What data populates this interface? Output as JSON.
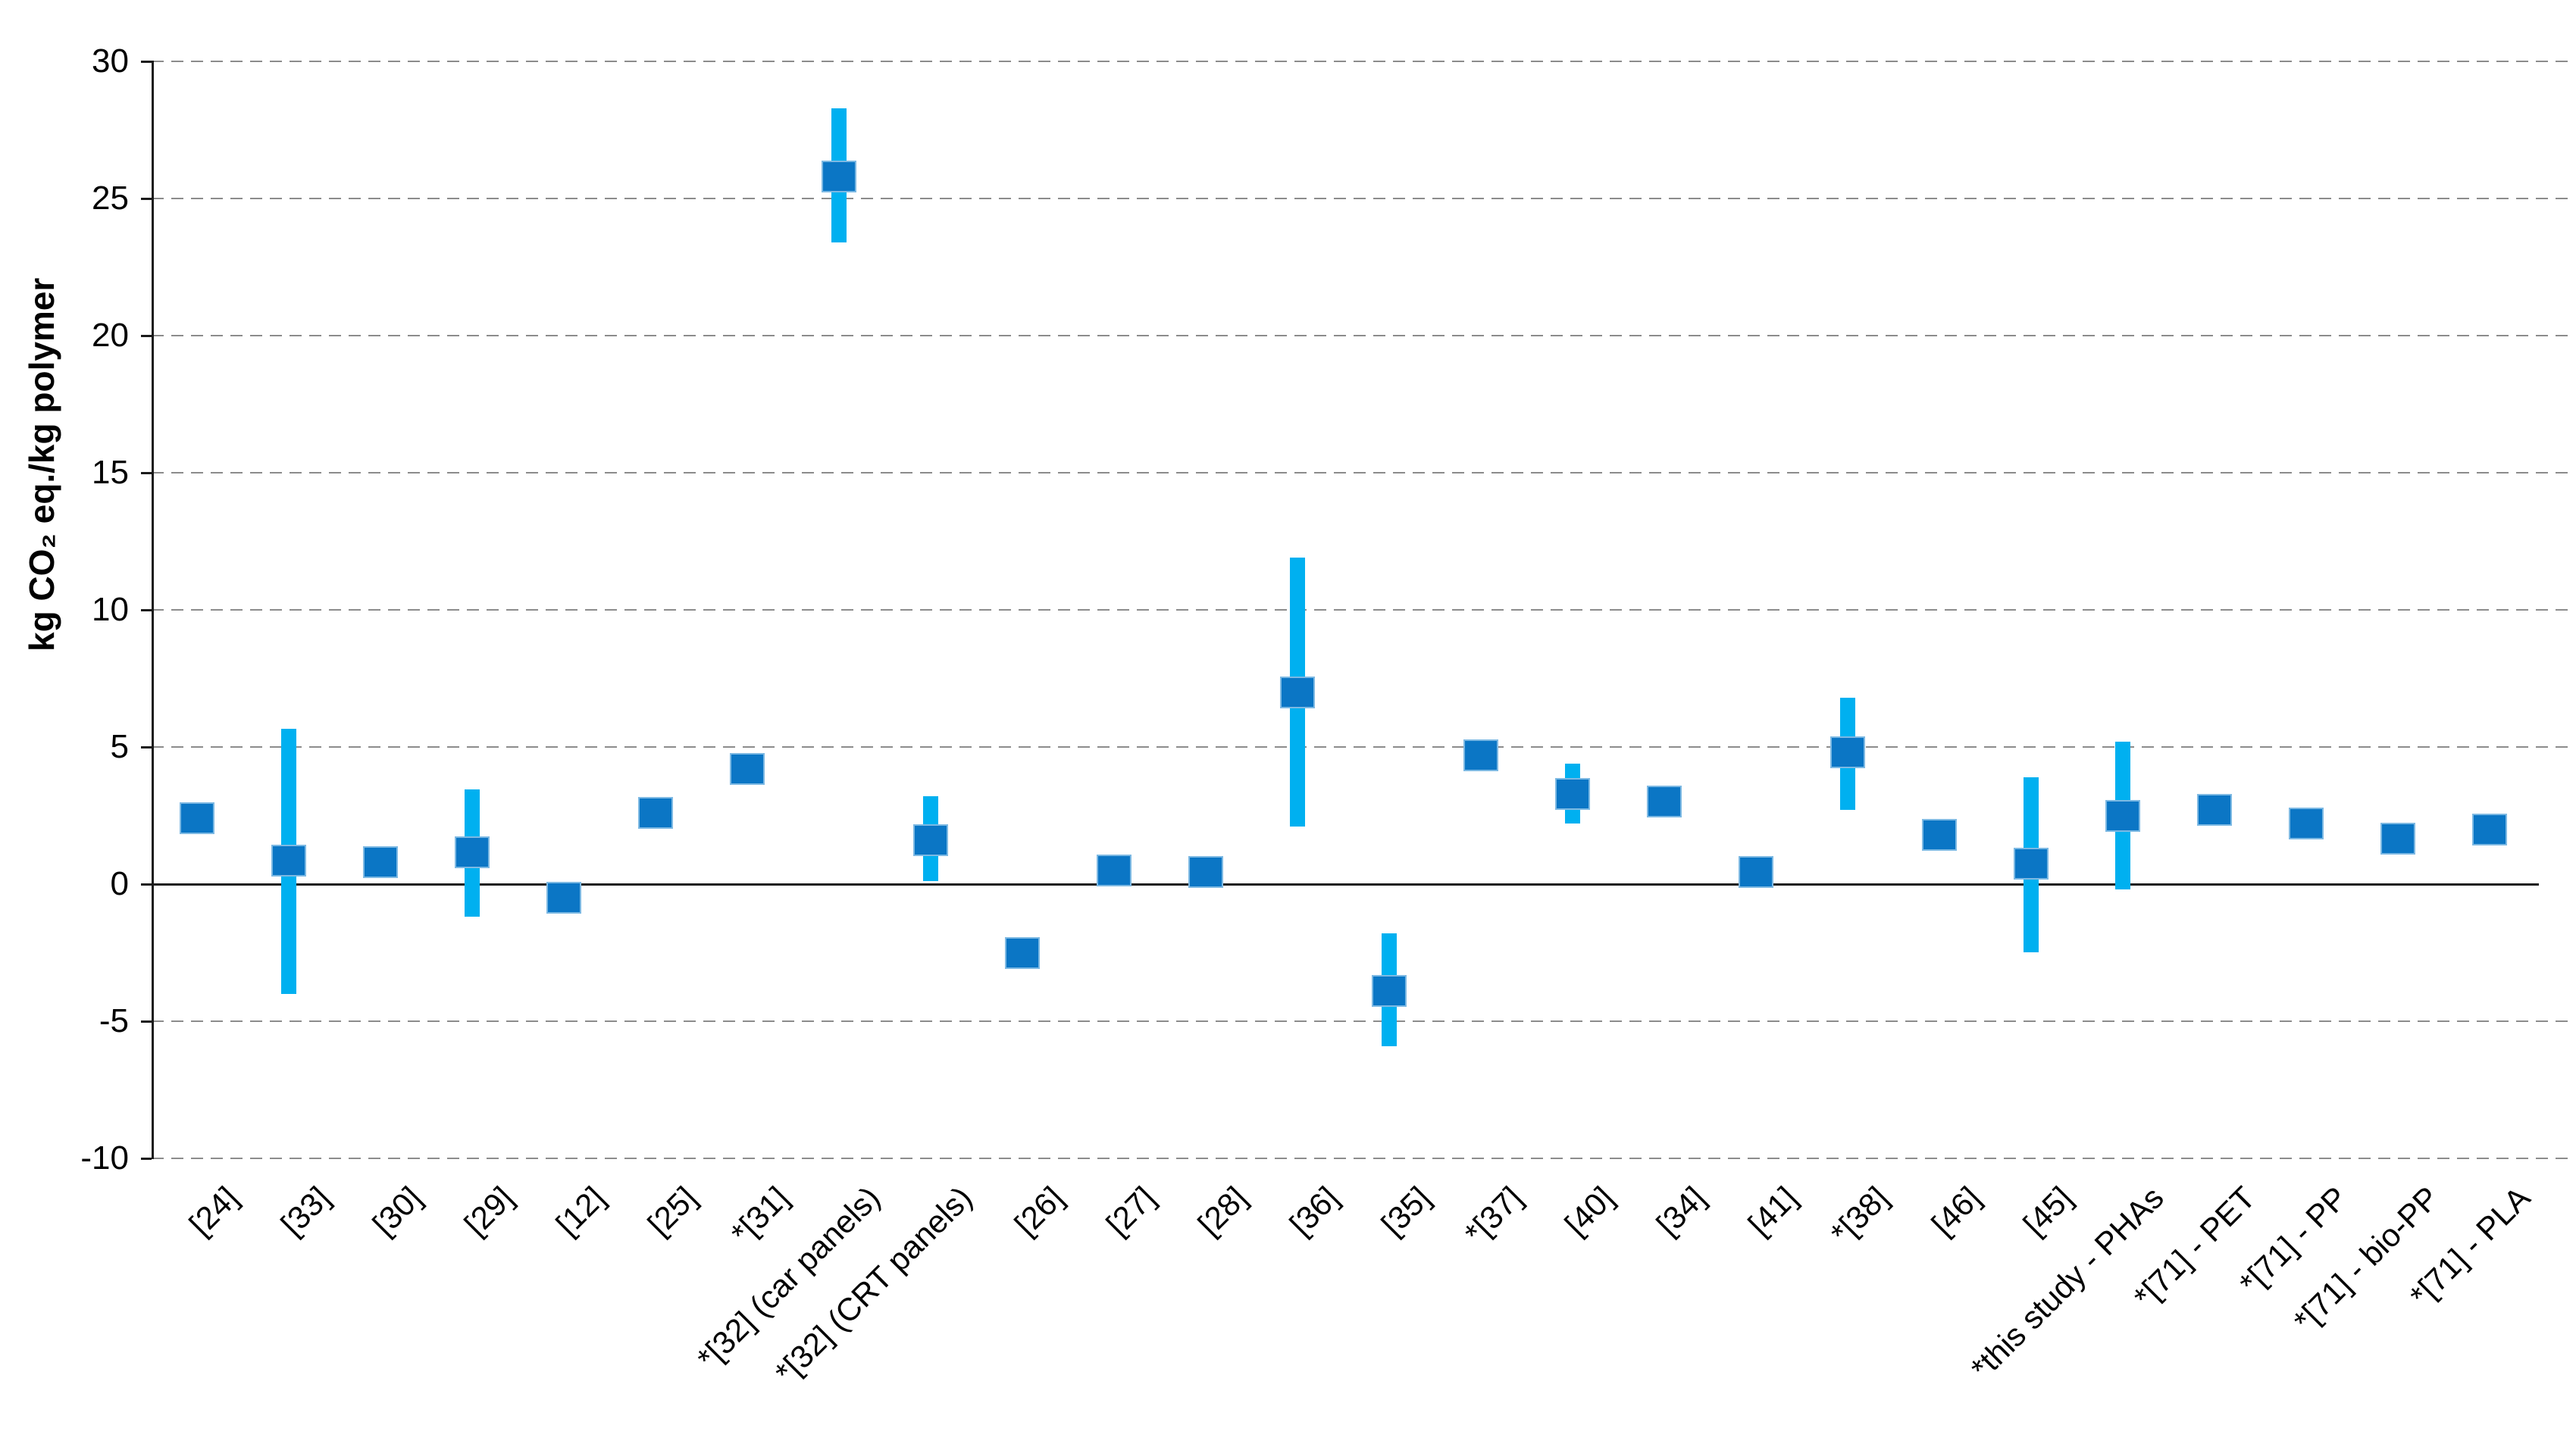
{
  "chart_data": {
    "type": "scatter",
    "title": "",
    "xlabel": "",
    "ylabel": "kg CO₂ eq./kg polymer",
    "ylim": [
      -10,
      30
    ],
    "yticks": [
      30,
      25,
      20,
      15,
      10,
      5,
      0,
      -5,
      -10
    ],
    "grid": "horizontal-dashed",
    "zero_line": "solid-black",
    "legend_position": "none",
    "marker_style": "filled-square",
    "error_bar_style": "thick-vertical-band",
    "colors": {
      "marker": "#0b76c5",
      "marker_border": "#7db9e3",
      "error_bar": "#00b0f0",
      "gridline": "#8c8c8c",
      "axis": "#1a1a1a",
      "text": "#000000",
      "background": "#ffffff"
    },
    "categories": [
      "[24]",
      "[33]",
      "[30]",
      "[29]",
      "[12]",
      "[25]",
      "*[31]",
      "*[32] (car panels)",
      "*[32] (CRT panels)",
      "[26]",
      "[27]",
      "[28]",
      "[36]",
      "[35]",
      "*[37]",
      "[40]",
      "[34]",
      "[41]",
      "*[38]",
      "[46]",
      "[45]",
      "*this study - PHAs",
      "*[71] - PET",
      "*[71] - PP",
      "*[71] - bio-PP",
      "*[71] - PLA"
    ],
    "points": [
      {
        "label": "[24]",
        "value": 2.4,
        "err_low": null,
        "err_high": null
      },
      {
        "label": "[33]",
        "value": 0.85,
        "err_low": -4.0,
        "err_high": 5.65
      },
      {
        "label": "[30]",
        "value": 0.8,
        "err_low": null,
        "err_high": null
      },
      {
        "label": "[29]",
        "value": 1.15,
        "err_low": -1.2,
        "err_high": 3.45
      },
      {
        "label": "[12]",
        "value": -0.5,
        "err_low": null,
        "err_high": null
      },
      {
        "label": "[25]",
        "value": 2.6,
        "err_low": null,
        "err_high": null
      },
      {
        "label": "*[31]",
        "value": 4.2,
        "err_low": null,
        "err_high": null
      },
      {
        "label": "*[32] (car panels)",
        "value": 25.8,
        "err_low": 23.4,
        "err_high": 28.3
      },
      {
        "label": "*[32] (CRT panels)",
        "value": 1.6,
        "err_low": 0.1,
        "err_high": 3.2
      },
      {
        "label": "[26]",
        "value": -2.5,
        "err_low": null,
        "err_high": null
      },
      {
        "label": "[27]",
        "value": 0.5,
        "err_low": null,
        "err_high": null
      },
      {
        "label": "[28]",
        "value": 0.45,
        "err_low": null,
        "err_high": null
      },
      {
        "label": "[36]",
        "value": 7.0,
        "err_low": 2.1,
        "err_high": 11.9
      },
      {
        "label": "[35]",
        "value": -3.9,
        "err_low": -5.9,
        "err_high": -1.8
      },
      {
        "label": "*[37]",
        "value": 4.7,
        "err_low": null,
        "err_high": null
      },
      {
        "label": "[40]",
        "value": 3.3,
        "err_low": 2.2,
        "err_high": 4.4
      },
      {
        "label": "[34]",
        "value": 3.0,
        "err_low": null,
        "err_high": null
      },
      {
        "label": "[41]",
        "value": 0.45,
        "err_low": null,
        "err_high": null
      },
      {
        "label": "*[38]",
        "value": 4.8,
        "err_low": 2.7,
        "err_high": 6.8
      },
      {
        "label": "[46]",
        "value": 1.8,
        "err_low": null,
        "err_high": null
      },
      {
        "label": "[45]",
        "value": 0.75,
        "err_low": -2.5,
        "err_high": 3.9
      },
      {
        "label": "*this study - PHAs",
        "value": 2.5,
        "err_low": -0.2,
        "err_high": 5.2
      },
      {
        "label": "*[71] - PET",
        "value": 2.7,
        "err_low": null,
        "err_high": null
      },
      {
        "label": "*[71] - PP",
        "value": 2.2,
        "err_low": null,
        "err_high": null
      },
      {
        "label": "*[71] - bio-PP",
        "value": 1.65,
        "err_low": null,
        "err_high": null
      },
      {
        "label": "*[71] - PLA",
        "value": 2.0,
        "err_low": null,
        "err_high": null
      }
    ]
  }
}
